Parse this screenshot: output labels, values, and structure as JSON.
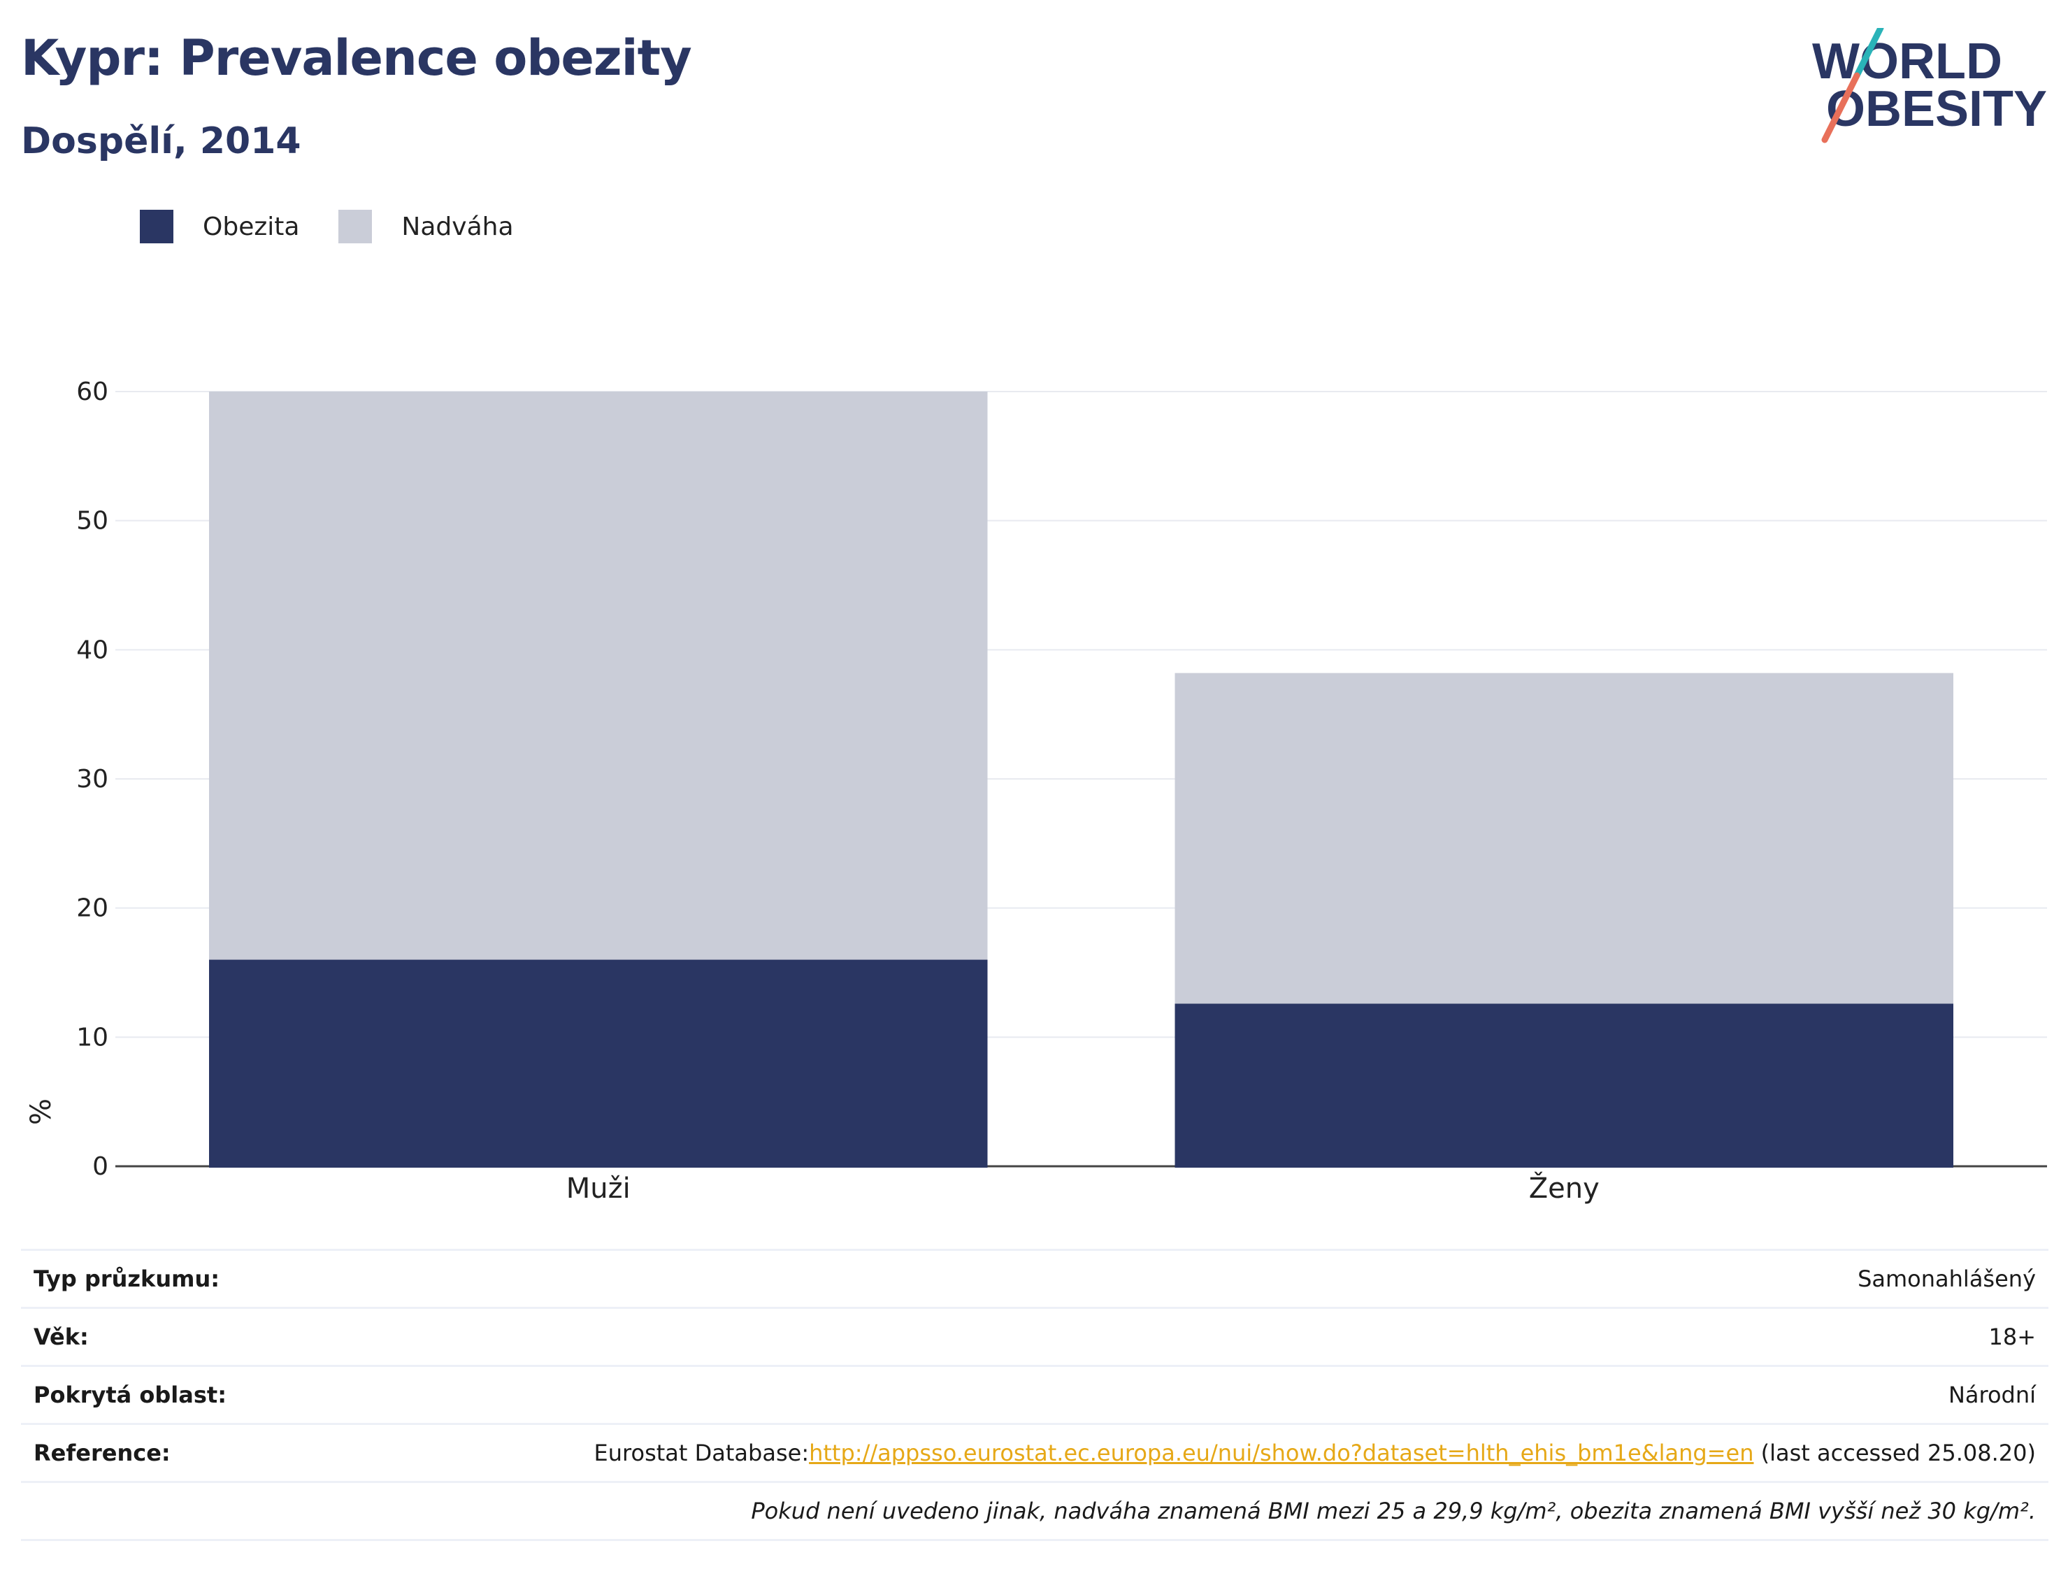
{
  "header": {
    "title": "Kypr: Prevalence obezity",
    "subtitle": "Dospělí, 2014",
    "logo_text": [
      "WORLD",
      "OBESITY"
    ]
  },
  "colors": {
    "obesity": "#2a3663",
    "overweight": "#cacdd8",
    "logo_teal": "#2ab3b8",
    "logo_coral": "#e8705a",
    "link": "#e6a817"
  },
  "legend": [
    {
      "label": "Obezita",
      "color": "#2a3663"
    },
    {
      "label": "Nadváha",
      "color": "#cacdd8"
    }
  ],
  "chart_data": {
    "type": "bar",
    "stacked": true,
    "categories": [
      "Muži",
      "Ženy"
    ],
    "series": [
      {
        "name": "Obezita",
        "values": [
          16.0,
          12.6
        ]
      },
      {
        "name": "Nadváha",
        "values": [
          44.0,
          25.6
        ]
      }
    ],
    "ylabel": "%",
    "ylim": [
      0,
      60
    ],
    "yticks": [
      0,
      10,
      20,
      30,
      40,
      50,
      60
    ],
    "grid": true,
    "legend_position": "top-left"
  },
  "info": {
    "survey_type": {
      "label": "Typ průzkumu:",
      "value": "Samonahlášený"
    },
    "age": {
      "label": "Věk:",
      "value": "18+"
    },
    "coverage": {
      "label": "Pokrytá oblast:",
      "value": "Národní"
    },
    "reference": {
      "label": "Reference:",
      "prefix": "Eurostat Database:",
      "link": "http://appsso.eurostat.ec.europa.eu/nui/show.do?dataset=hlth_ehis_bm1e&lang=en",
      "suffix": " (last accessed 25.08.20)"
    },
    "note": "Pokud není uvedeno jinak, nadváha znamená BMI mezi 25 a 29,9 kg/m², obezita znamená BMI vyšší než 30 kg/m²."
  }
}
